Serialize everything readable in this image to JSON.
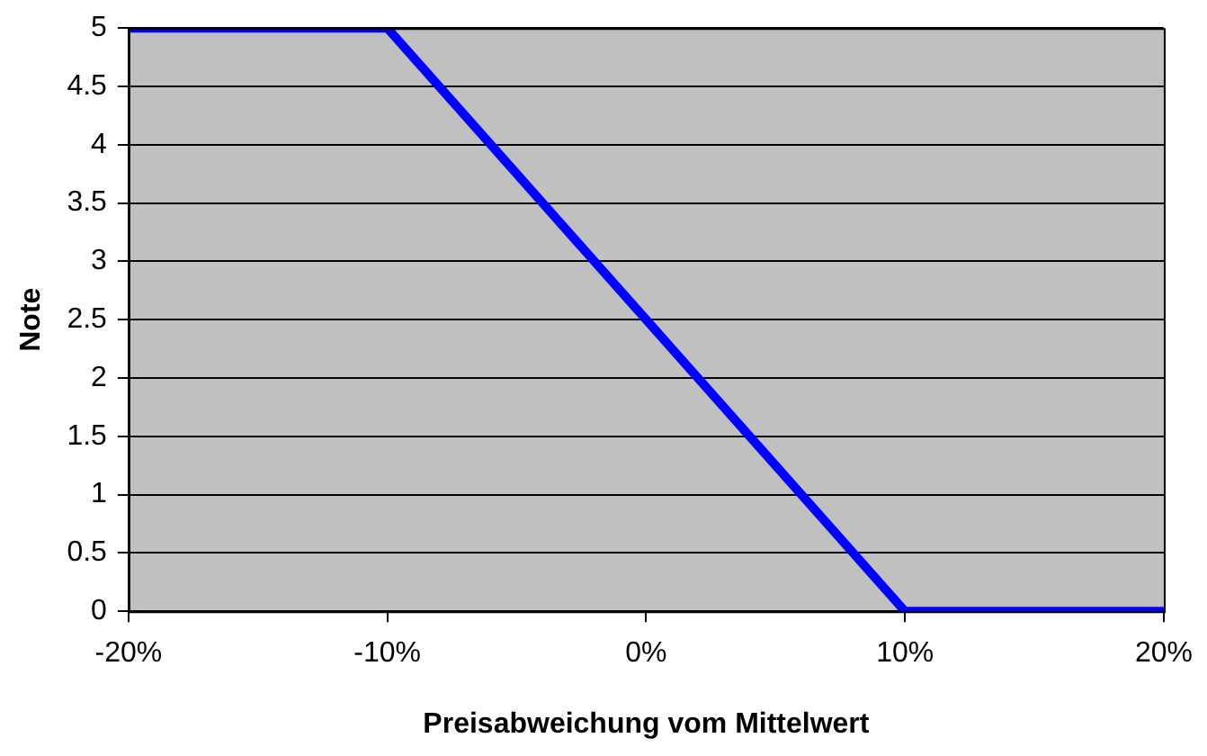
{
  "chart_data": {
    "type": "line",
    "xlabel": "Preisabweichung vom Mittelwert",
    "ylabel": "Note",
    "x": [
      -20,
      -10,
      10,
      20
    ],
    "series": [
      {
        "color": "#0000ff",
        "values": [
          5,
          5,
          0,
          0
        ]
      }
    ],
    "xlim": [
      -20,
      20
    ],
    "xticks": [
      {
        "value": -20,
        "label": "-20%"
      },
      {
        "value": -10,
        "label": "-10%"
      },
      {
        "value": 0,
        "label": "0%"
      },
      {
        "value": 10,
        "label": "10%"
      },
      {
        "value": 20,
        "label": "20%"
      }
    ],
    "ylim": [
      0,
      5
    ],
    "yticks": [
      0,
      0.5,
      1,
      1.5,
      2,
      2.5,
      3,
      3.5,
      4,
      4.5,
      5
    ],
    "grid": "y",
    "legend": false,
    "marker": "none",
    "line_style": "solid"
  }
}
